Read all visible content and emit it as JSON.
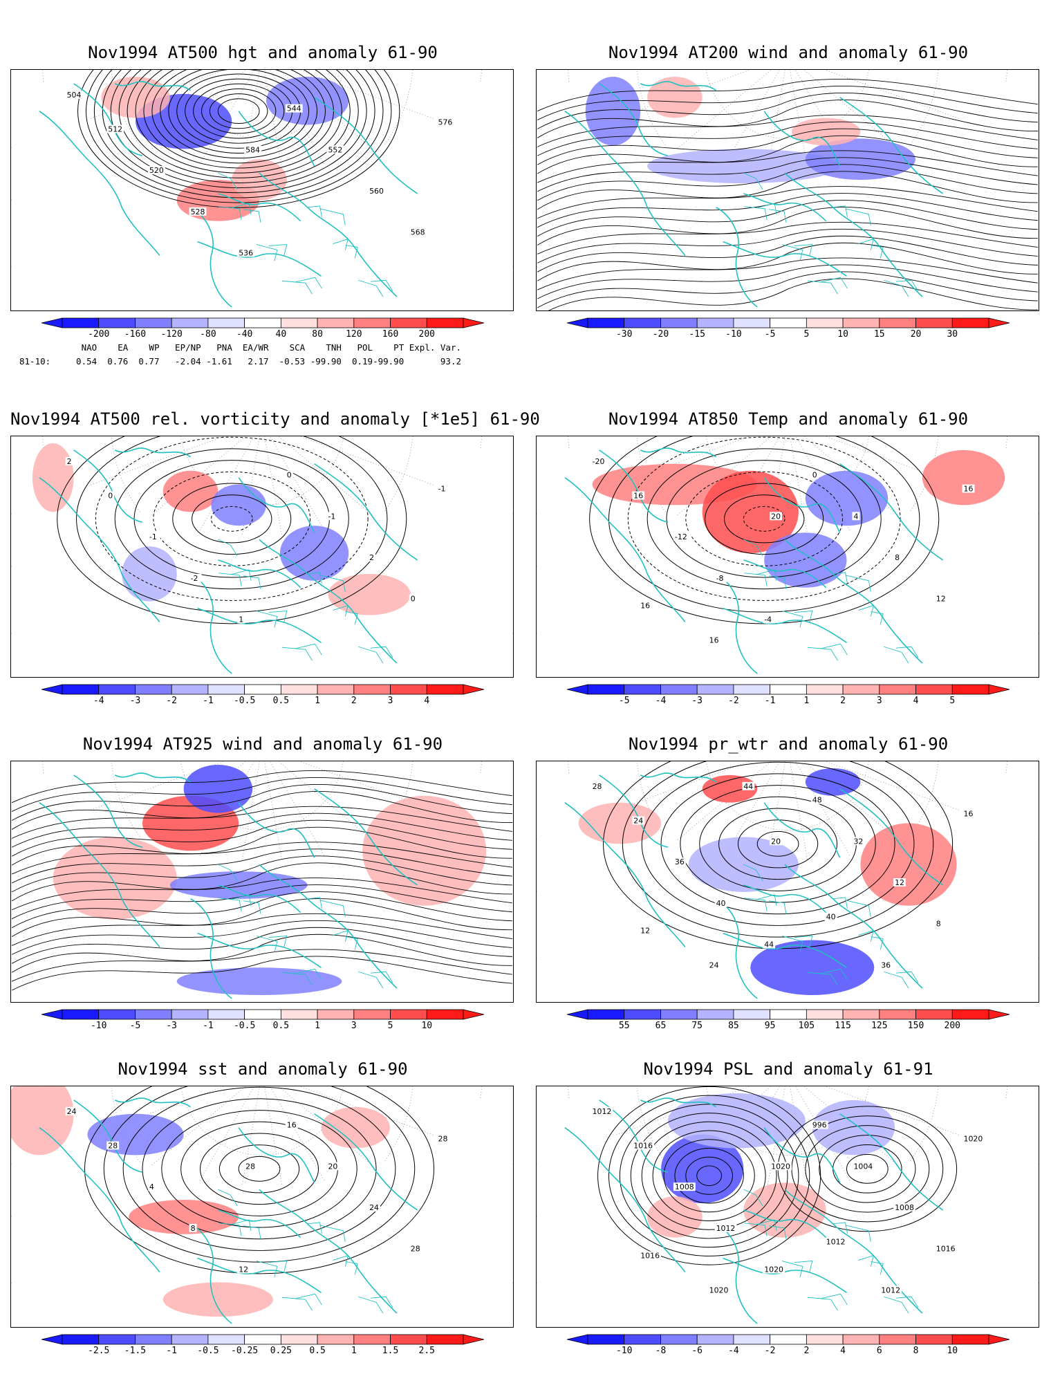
{
  "panels": [
    {
      "id": "p1",
      "title": "Nov1994 AT500 hgt and anomaly 61-90",
      "colorbar": [
        "-200",
        "-160",
        "-120",
        "-80",
        "-40",
        "40",
        "80",
        "120",
        "160",
        "200"
      ],
      "contour_labels": [
        "504",
        "512",
        "520",
        "528",
        "536",
        "544",
        "552",
        "560",
        "568",
        "576",
        "584"
      ]
    },
    {
      "id": "p2",
      "title": "Nov1994 AT200 wind and anomaly 61-90",
      "colorbar": [
        "-30",
        "-20",
        "-15",
        "-10",
        "-5",
        "5",
        "10",
        "15",
        "20",
        "30"
      ],
      "contour_labels": []
    },
    {
      "id": "p3",
      "title": "Nov1994 AT500 rel. vorticity and anomaly [*1e5] 61-90",
      "colorbar": [
        "-4",
        "-3",
        "-2",
        "-1",
        "-0.5",
        "0.5",
        "1",
        "2",
        "3",
        "4"
      ],
      "contour_labels": [
        "2",
        "0",
        "-1",
        "-2",
        "1",
        "0",
        "-1",
        "2",
        "0",
        "-1"
      ]
    },
    {
      "id": "p4",
      "title": "Nov1994 AT850 Temp and anomaly 61-90",
      "colorbar": [
        "-5",
        "-4",
        "-3",
        "-2",
        "-1",
        "1",
        "2",
        "3",
        "4",
        "5"
      ],
      "contour_labels": [
        "-20",
        "16",
        "-12",
        "-8",
        "-4",
        "0",
        "4",
        "8",
        "12",
        "16",
        "20",
        "16",
        "16"
      ]
    },
    {
      "id": "p5",
      "title": "Nov1994 AT925 wind and anomaly 61-90",
      "colorbar": [
        "-10",
        "-5",
        "-3",
        "-1",
        "-0.5",
        "0.5",
        "1",
        "3",
        "5",
        "10"
      ],
      "contour_labels": []
    },
    {
      "id": "p6",
      "title": "Nov1994 pr_wtr and anomaly 61-90",
      "colorbar": [
        "55",
        "65",
        "75",
        "85",
        "95",
        "105",
        "115",
        "125",
        "150",
        "200"
      ],
      "contour_labels": [
        "28",
        "24",
        "36",
        "40",
        "44",
        "48",
        "32",
        "12",
        "8",
        "16",
        "20",
        "24",
        "12",
        "36",
        "40",
        "44"
      ]
    },
    {
      "id": "p7",
      "title": "Nov1994 sst and anomaly 61-90",
      "colorbar": [
        "-2.5",
        "-1.5",
        "-1",
        "-0.5",
        "-0.25",
        "0.25",
        "0.5",
        "1",
        "1.5",
        "2.5"
      ],
      "contour_labels": [
        "24",
        "28",
        "4",
        "8",
        "12",
        "16",
        "20",
        "24",
        "28",
        "28",
        "28"
      ]
    },
    {
      "id": "p8",
      "title": "Nov1994 PSL and anomaly 61-91",
      "colorbar": [
        "-10",
        "-8",
        "-6",
        "-4",
        "-2",
        "2",
        "4",
        "6",
        "8",
        "10"
      ],
      "contour_labels": [
        "1012",
        "1016",
        "1008",
        "1012",
        "1020",
        "996",
        "1004",
        "1008",
        "1016",
        "1020",
        "1020",
        "1020",
        "1016",
        "1012",
        "1012"
      ]
    }
  ],
  "teleconnections": {
    "headers": [
      "NAO",
      "EA",
      "WP",
      "EP/NP",
      "PNA",
      "EA/WR",
      "SCA",
      "TNH",
      "POL",
      "PT",
      "Expl. Var."
    ],
    "row_label": "81-10:",
    "values": [
      "0.54",
      "0.76",
      "0.77",
      "-2.04",
      "-1.61",
      "2.17",
      "-0.53",
      "-99.90",
      "0.19",
      "-99.90",
      "93.2"
    ]
  },
  "colors": {
    "land": "#20c0c0",
    "blue_scale": [
      "#1a1aff",
      "#4d4dff",
      "#8080ff",
      "#b3b3ff",
      "#e0e0ff"
    ],
    "red_scale": [
      "#ffe0e0",
      "#ffb3b3",
      "#ff8080",
      "#ff4d4d",
      "#ff1a1a"
    ]
  }
}
